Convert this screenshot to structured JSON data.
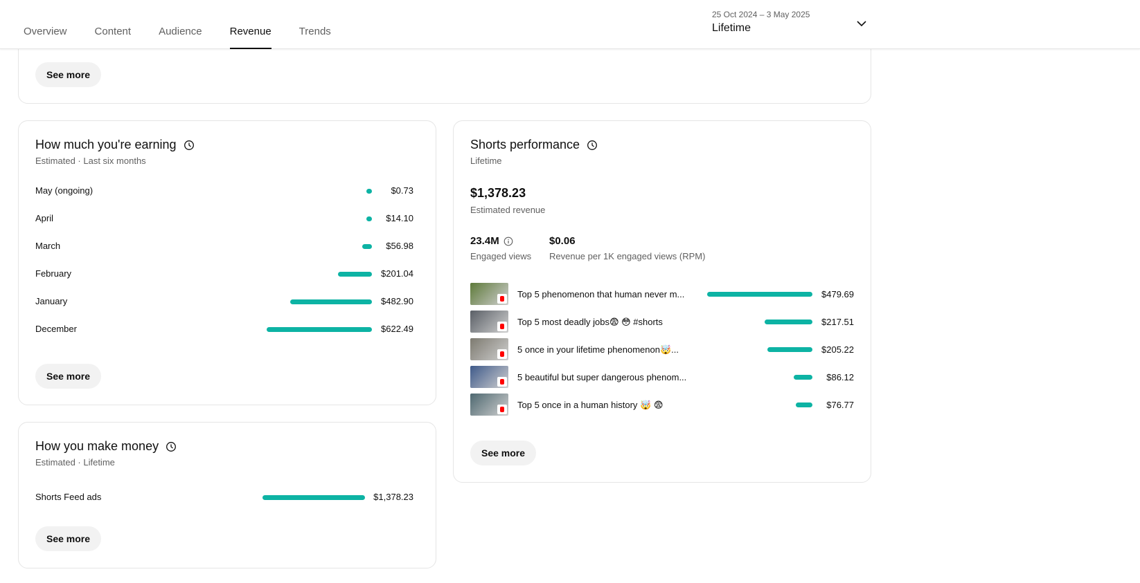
{
  "tabs": [
    "Overview",
    "Content",
    "Audience",
    "Revenue",
    "Trends"
  ],
  "active_tab": "Revenue",
  "date_picker": {
    "range": "25 Oct 2024 – 3 May 2025",
    "value": "Lifetime"
  },
  "top_card": {
    "button": "See more"
  },
  "earning": {
    "title": "How much you're earning",
    "subtitle": "Estimated · Last six months",
    "rows": [
      {
        "label": "May (ongoing)",
        "value": "$0.73",
        "amount": 0.73
      },
      {
        "label": "April",
        "value": "$14.10",
        "amount": 14.1
      },
      {
        "label": "March",
        "value": "$56.98",
        "amount": 56.98
      },
      {
        "label": "February",
        "value": "$201.04",
        "amount": 201.04
      },
      {
        "label": "January",
        "value": "$482.90",
        "amount": 482.9
      },
      {
        "label": "December",
        "value": "$622.49",
        "amount": 622.49
      }
    ],
    "button": "See more"
  },
  "money": {
    "title": "How you make money",
    "subtitle": "Estimated · Lifetime",
    "rows": [
      {
        "label": "Shorts Feed ads",
        "value": "$1,378.23",
        "amount": 1378.23
      }
    ],
    "button": "See more"
  },
  "shorts": {
    "title": "Shorts performance",
    "subtitle": "Lifetime",
    "revenue_value": "$1,378.23",
    "revenue_label": "Estimated revenue",
    "views_value": "23.4M",
    "views_label": "Engaged views",
    "rpm_value": "$0.06",
    "rpm_label": "Revenue per 1K engaged views (RPM)",
    "videos": [
      {
        "title": "Top 5 phenomenon that human never m...",
        "value": "$479.69",
        "amount": 479.69,
        "thumb_color": "#5e7a3a"
      },
      {
        "title": "Top 5 most deadly jobs😨 😳 #shorts",
        "value": "$217.51",
        "amount": 217.51,
        "thumb_color": "#5a5f66"
      },
      {
        "title": "5 once in your lifetime phenomenon🤯...",
        "value": "$205.22",
        "amount": 205.22,
        "thumb_color": "#7d7a70"
      },
      {
        "title": "5 beautiful but super dangerous phenom...",
        "value": "$86.12",
        "amount": 86.12,
        "thumb_color": "#3f5a8a"
      },
      {
        "title": "Top 5 once in a human history 🤯 😨",
        "value": "$76.77",
        "amount": 76.77,
        "thumb_color": "#4e6870"
      }
    ],
    "button": "See more"
  },
  "colors": {
    "bar": "#0db3a4",
    "shorts_badge": "#ff0000"
  }
}
